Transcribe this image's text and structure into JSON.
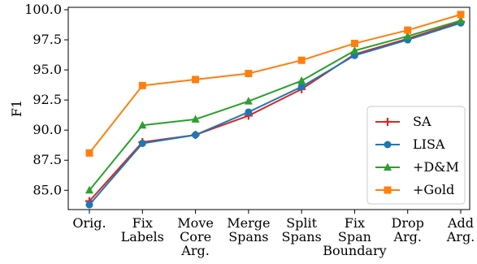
{
  "chart_data": {
    "type": "line",
    "title": "",
    "xlabel": "",
    "ylabel": "F1",
    "ylim": [
      83.4,
      100.2
    ],
    "yticks": [
      "85.0",
      "87.5",
      "90.0",
      "92.5",
      "95.0",
      "97.5",
      "100.0"
    ],
    "ytick_values": [
      85.0,
      87.5,
      90.0,
      92.5,
      95.0,
      97.5,
      100.0
    ],
    "categories": [
      [
        "Orig."
      ],
      [
        "Fix",
        "Labels"
      ],
      [
        "Move",
        "Core",
        "Arg."
      ],
      [
        "Merge",
        "Spans"
      ],
      [
        "Split",
        "Spans"
      ],
      [
        "Fix",
        "Span",
        "Boundary"
      ],
      [
        "Drop",
        "Arg."
      ],
      [
        "Add",
        "Arg."
      ]
    ],
    "grid": false,
    "legend_position": "lower-right",
    "series": [
      {
        "name": "SA",
        "color": "#d62728",
        "marker": "plus",
        "values": [
          84.1,
          89.0,
          89.6,
          91.2,
          93.4,
          96.3,
          97.6,
          99.0
        ]
      },
      {
        "name": "LISA",
        "color": "#1f77b4",
        "marker": "circle",
        "values": [
          83.8,
          88.9,
          89.6,
          91.5,
          93.6,
          96.2,
          97.5,
          98.9
        ]
      },
      {
        "name": "+D&M",
        "color": "#2ca02c",
        "marker": "triangle",
        "values": [
          85.0,
          90.4,
          90.9,
          92.4,
          94.1,
          96.6,
          97.8,
          99.1
        ]
      },
      {
        "name": "+Gold",
        "color": "#ff7f0e",
        "marker": "square",
        "values": [
          88.1,
          93.7,
          94.2,
          94.7,
          95.8,
          97.2,
          98.3,
          99.6
        ]
      }
    ]
  }
}
